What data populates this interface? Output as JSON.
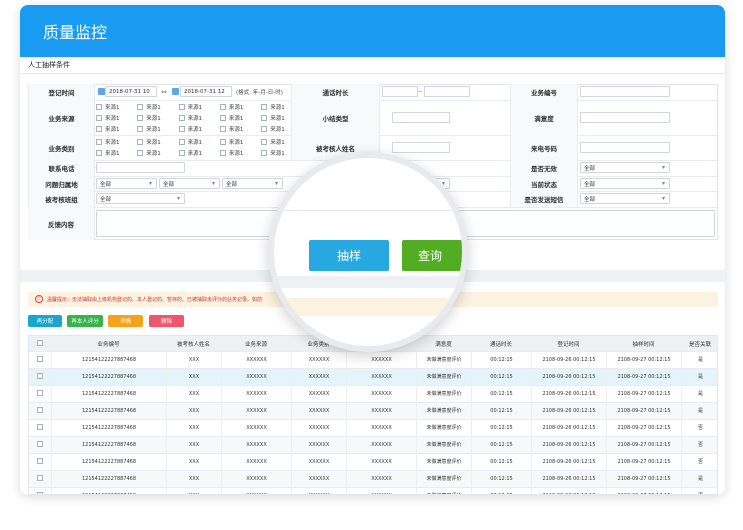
{
  "header": {
    "title": "质量监控"
  },
  "form": {
    "title": "人工抽样条件",
    "register_time": {
      "label": "登记时间",
      "start": "2018-07-31 10",
      "end": "2018-07-31 12",
      "format": "(格式: 年-月-日-时)"
    },
    "call_duration": {
      "label": "通话时长",
      "separator": "--"
    },
    "business_no": {
      "label": "业务编号"
    },
    "business_source": {
      "label": "业务来源",
      "options": [
        "来源1",
        "来源1",
        "来源1",
        "来源1",
        "来源1",
        "来源1",
        "来源1",
        "来源1",
        "来源1",
        "来源1",
        "来源1",
        "来源1",
        "来源1",
        "来源1",
        "来源1"
      ]
    },
    "summary_type": {
      "label": "小结类型"
    },
    "satisfaction": {
      "label": "满意度"
    },
    "business_category": {
      "label": "业务类别",
      "options": [
        "来源1",
        "来源1",
        "来源1",
        "来源1",
        "来源1",
        "来源1",
        "来源1",
        "来源1",
        "来源1",
        "来源1"
      ]
    },
    "assessee_name": {
      "label": "被考核人姓名"
    },
    "caller_number": {
      "label": "来电号码"
    },
    "contact_phone": {
      "label": "联系电话"
    },
    "is_invalid": {
      "label": "是否无效",
      "value": "全部"
    },
    "problem_region": {
      "label": "问题归属地",
      "values": [
        "全部",
        "全部",
        "全部"
      ]
    },
    "current_status": {
      "label": "当前状态",
      "value": "全部"
    },
    "assessee_team": {
      "label": "被考核班组",
      "value": "全部"
    },
    "send_sms": {
      "label": "是否发送短信",
      "value": "全部"
    },
    "feedback": {
      "label": "反馈内容"
    }
  },
  "actions": [
    "抽样",
    "查询"
  ],
  "notice": "温馨提示：无法抽取由上级机构登记的、本人登记的、暂存的、已被抽取未评分的业务记录。如前",
  "toolbar": [
    "再分配",
    "再本人评分",
    "详情",
    "删除"
  ],
  "table": {
    "columns": [
      "业务编号",
      "被考核人姓名",
      "业务来源",
      "业务类别",
      null,
      "满意度",
      "通话时长",
      "登记时间",
      "抽样时间",
      "是否关联"
    ],
    "rows": [
      [
        "12154122227887468",
        "XXX",
        "XXXXXX",
        "XXXXXX",
        "XXXXXX",
        "未做满意度评价",
        "00:12:15",
        "2108-09-26 00:12:15",
        "2108-09-27 00:12:15",
        "是"
      ],
      [
        "12154122227887468",
        "XXX",
        "XXXXXX",
        "XXXXXX",
        "XXXXXX",
        "未做满意度评价",
        "00:12:15",
        "2108-09-26 00:12:15",
        "2108-09-27 00:12:15",
        "是"
      ],
      [
        "12154122227887468",
        "XXX",
        "XXXXXX",
        "XXXXXX",
        "XXXXXX",
        "未做满意度评价",
        "00:12:15",
        "2108-09-26 00:12:15",
        "2108-09-27 00:12:15",
        "是"
      ],
      [
        "12154122227887468",
        "XXX",
        "XXXXXX",
        "XXXXXX",
        "XXXXXX",
        "未做满意度评价",
        "00:12:15",
        "2108-09-26 00:12:15",
        "2108-09-27 00:12:15",
        "是"
      ],
      [
        "12154122227887468",
        "XXX",
        "XXXXXX",
        "XXXXXX",
        "XXXXXX",
        "未做满意度评价",
        "00:12:15",
        "2108-09-26 00:12:15",
        "2108-09-27 00:12:15",
        "否"
      ],
      [
        "12154122227887468",
        "XXX",
        "XXXXXX",
        "XXXXXX",
        "XXXXXX",
        "未做满意度评价",
        "00:12:15",
        "2108-09-26 00:12:15",
        "2108-09-27 00:12:15",
        "否"
      ],
      [
        "12154122227887468",
        "XXX",
        "XXXXXX",
        "XXXXXX",
        "XXXXXX",
        "未做满意度评价",
        "00:12:15",
        "2108-09-26 00:12:15",
        "2108-09-27 00:12:15",
        "否"
      ],
      [
        "12154122227887468",
        "XXX",
        "XXXXXX",
        "XXXXXX",
        "XXXXXX",
        "未做满意度评价",
        "00:12:15",
        "2108-09-26 00:12:15",
        "2108-09-27 00:12:15",
        "是"
      ],
      [
        "12154122227887468",
        "XXX",
        "XXXXXX",
        "XXXXXX",
        "XXXXXX",
        "未做满意度评价",
        "00:12:15",
        "2108-09-26 00:12:15",
        "2108-09-27 00:12:15",
        "否"
      ]
    ]
  }
}
